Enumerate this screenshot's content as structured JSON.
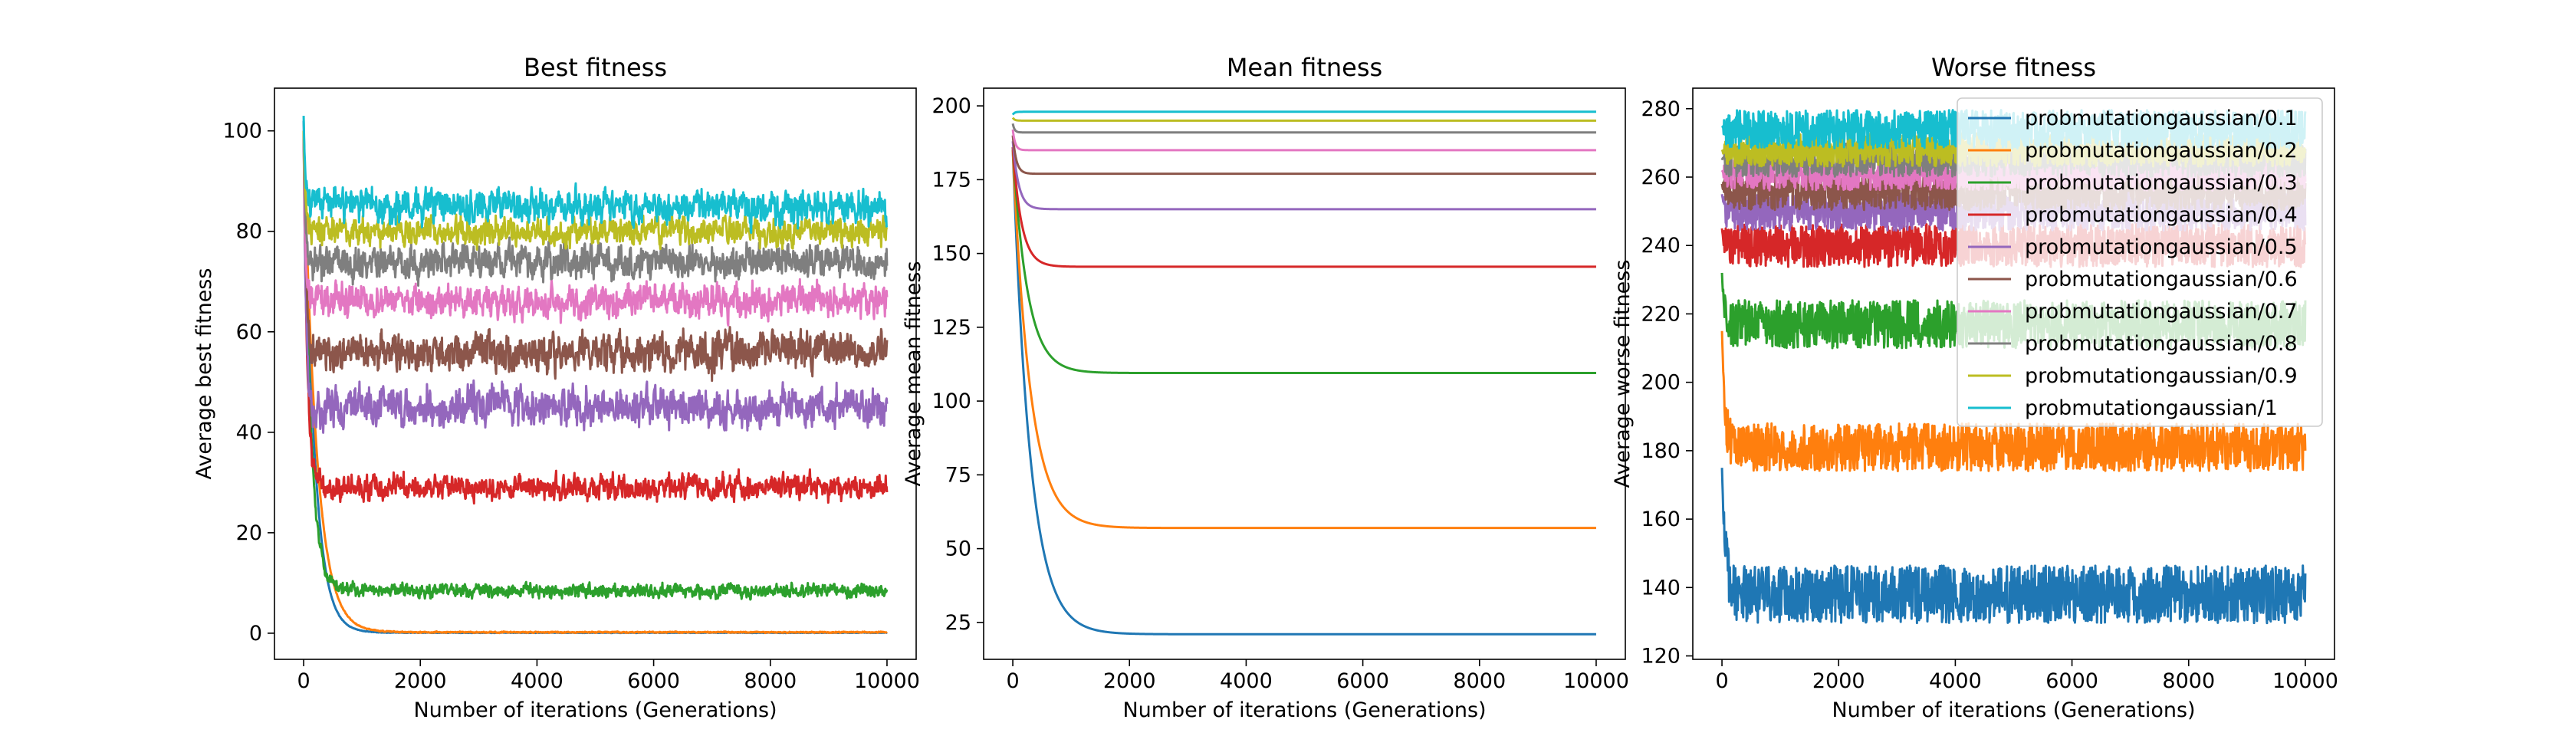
{
  "chart_data": [
    {
      "type": "line",
      "title": "Best fitness",
      "xlabel": "Number of iterations (Generations)",
      "ylabel": "Average best fitness",
      "xlim": [
        -500,
        10500
      ],
      "ylim": [
        -5.2,
        108.5
      ],
      "x_ticks": [
        0,
        2000,
        4000,
        6000,
        8000,
        10000
      ],
      "y_ticks": [
        0,
        20,
        40,
        60,
        80,
        100
      ],
      "grid": false,
      "series": [
        {
          "name": "probmutationgaussian/0.1",
          "start": 102,
          "level": 0.1,
          "decay": 180,
          "noise": 0.05
        },
        {
          "name": "probmutationgaussian/0.2",
          "start": 100,
          "level": 0.2,
          "decay": 220,
          "noise": 0.1
        },
        {
          "name": "probmutationgaussian/0.3",
          "start": 100,
          "level": 8.5,
          "decay": 120,
          "noise": 1.2
        },
        {
          "name": "probmutationgaussian/0.4",
          "start": 100,
          "level": 29,
          "decay": 60,
          "noise": 2.2
        },
        {
          "name": "probmutationgaussian/0.5",
          "start": 100,
          "level": 45,
          "decay": 40,
          "noise": 3.5
        },
        {
          "name": "probmutationgaussian/0.6",
          "start": 100,
          "level": 56,
          "decay": 40,
          "noise": 3.5
        },
        {
          "name": "probmutationgaussian/0.7",
          "start": 100,
          "level": 66,
          "decay": 30,
          "noise": 3.0
        },
        {
          "name": "probmutationgaussian/0.8",
          "start": 100,
          "level": 74,
          "decay": 30,
          "noise": 3.0
        },
        {
          "name": "probmutationgaussian/0.9",
          "start": 100,
          "level": 80,
          "decay": 30,
          "noise": 2.5
        },
        {
          "name": "probmutationgaussian/1",
          "start": 103,
          "level": 85,
          "decay": 30,
          "noise": 3.0
        }
      ]
    },
    {
      "type": "line",
      "title": "Mean fitness",
      "xlabel": "Number of iterations (Generations)",
      "ylabel": "Average mean fitness",
      "xlim": [
        -500,
        10500
      ],
      "ylim": [
        12.5,
        206
      ],
      "x_ticks": [
        0,
        2000,
        4000,
        6000,
        8000,
        10000
      ],
      "y_ticks": [
        25,
        50,
        75,
        100,
        125,
        150,
        175,
        200
      ],
      "grid": false,
      "series": [
        {
          "name": "probmutationgaussian/0.1",
          "start": 185,
          "level": 21,
          "decay": 300,
          "noise": 0
        },
        {
          "name": "probmutationgaussian/0.2",
          "start": 185,
          "level": 57,
          "decay": 300,
          "noise": 0
        },
        {
          "name": "probmutationgaussian/0.3",
          "start": 186,
          "level": 109.5,
          "decay": 250,
          "noise": 0
        },
        {
          "name": "probmutationgaussian/0.4",
          "start": 186,
          "level": 145.5,
          "decay": 150,
          "noise": 0
        },
        {
          "name": "probmutationgaussian/0.5",
          "start": 188,
          "level": 165,
          "decay": 100,
          "noise": 0
        },
        {
          "name": "probmutationgaussian/0.6",
          "start": 190,
          "level": 177,
          "decay": 60,
          "noise": 0
        },
        {
          "name": "probmutationgaussian/0.7",
          "start": 192,
          "level": 185,
          "decay": 40,
          "noise": 0
        },
        {
          "name": "probmutationgaussian/0.8",
          "start": 194,
          "level": 191,
          "decay": 30,
          "noise": 0
        },
        {
          "name": "probmutationgaussian/0.9",
          "start": 196,
          "level": 195,
          "decay": 30,
          "noise": 0
        },
        {
          "name": "probmutationgaussian/1",
          "start": 197,
          "level": 198,
          "decay": 30,
          "noise": 0
        }
      ]
    },
    {
      "type": "line",
      "title": "Worse fitness",
      "xlabel": "Number of iterations (Generations)",
      "ylabel": "Average worse fitness",
      "xlim": [
        -500,
        10500
      ],
      "ylim": [
        119,
        286
      ],
      "x_ticks": [
        0,
        2000,
        4000,
        6000,
        8000,
        10000
      ],
      "y_ticks": [
        120,
        140,
        160,
        180,
        200,
        220,
        240,
        260,
        280
      ],
      "grid": false,
      "legend": "top-right",
      "series": [
        {
          "name": "probmutationgaussian/0.1",
          "start": 175,
          "level": 138,
          "decay": 60,
          "noise": 6
        },
        {
          "name": "probmutationgaussian/0.2",
          "start": 215,
          "level": 181,
          "decay": 50,
          "noise": 5
        },
        {
          "name": "probmutationgaussian/0.3",
          "start": 232,
          "level": 217,
          "decay": 40,
          "noise": 5
        },
        {
          "name": "probmutationgaussian/0.4",
          "start": 245,
          "level": 240,
          "decay": 30,
          "noise": 4.5
        },
        {
          "name": "probmutationgaussian/0.5",
          "start": 255,
          "level": 250,
          "decay": 30,
          "noise": 4
        },
        {
          "name": "probmutationgaussian/0.6",
          "start": 258,
          "level": 256,
          "decay": 30,
          "noise": 4
        },
        {
          "name": "probmutationgaussian/0.7",
          "start": 262,
          "level": 261,
          "decay": 30,
          "noise": 3.5
        },
        {
          "name": "probmutationgaussian/0.8",
          "start": 265,
          "level": 265,
          "decay": 30,
          "noise": 3.5
        },
        {
          "name": "probmutationgaussian/0.9",
          "start": 268,
          "level": 268,
          "decay": 30,
          "noise": 3.5
        },
        {
          "name": "probmutationgaussian/1",
          "start": 275,
          "level": 274,
          "decay": 30,
          "noise": 4
        }
      ]
    }
  ],
  "series_colors": [
    "#1f77b4",
    "#ff7f0e",
    "#2ca02c",
    "#d62728",
    "#9467bd",
    "#8c564b",
    "#e377c2",
    "#7f7f7f",
    "#bcbd22",
    "#17becf"
  ]
}
